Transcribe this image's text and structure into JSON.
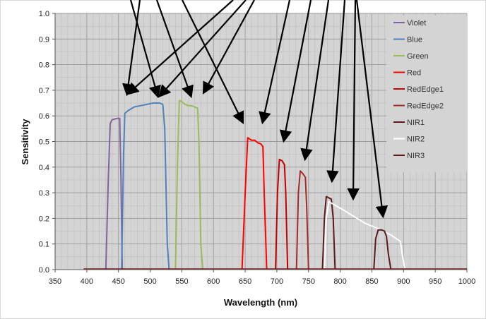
{
  "chart_data": {
    "type": "line",
    "title": "",
    "xlabel": "Wavelength (nm)",
    "ylabel": "Sensitivity",
    "xlim": [
      350,
      1000
    ],
    "ylim": [
      0,
      1.0
    ],
    "x_ticks": [
      "350",
      "400",
      "450",
      "500",
      "550",
      "600",
      "650",
      "700",
      "750",
      "800",
      "850",
      "900",
      "950",
      "1000"
    ],
    "y_ticks": [
      "0.0",
      "0.1",
      "0.2",
      "0.3",
      "0.4",
      "0.5",
      "0.6",
      "0.7",
      "0.8",
      "0.9",
      "1.0"
    ],
    "grid": true,
    "legend_position": "top-right",
    "series": [
      {
        "name": "Violet",
        "color": "#8064a2",
        "points": [
          [
            430,
            0
          ],
          [
            434,
            0.35
          ],
          [
            437,
            0.57
          ],
          [
            440,
            0.585
          ],
          [
            448,
            0.59
          ],
          [
            452,
            0.59
          ],
          [
            454,
            0.35
          ],
          [
            456,
            0
          ]
        ]
      },
      {
        "name": "Blue",
        "color": "#4f81bd",
        "points": [
          [
            455,
            0
          ],
          [
            458,
            0.45
          ],
          [
            460,
            0.61
          ],
          [
            465,
            0.62
          ],
          [
            475,
            0.635
          ],
          [
            485,
            0.64
          ],
          [
            495,
            0.645
          ],
          [
            505,
            0.65
          ],
          [
            515,
            0.65
          ],
          [
            520,
            0.645
          ],
          [
            523,
            0.55
          ],
          [
            527,
            0.1
          ],
          [
            530,
            0
          ]
        ]
      },
      {
        "name": "Green",
        "color": "#9bbb59",
        "points": [
          [
            540,
            0
          ],
          [
            543,
            0.4
          ],
          [
            546,
            0.66
          ],
          [
            550,
            0.655
          ],
          [
            555,
            0.645
          ],
          [
            560,
            0.64
          ],
          [
            565,
            0.64
          ],
          [
            570,
            0.635
          ],
          [
            575,
            0.63
          ],
          [
            577,
            0.5
          ],
          [
            580,
            0.1
          ],
          [
            583,
            0
          ]
        ]
      },
      {
        "name": "Red",
        "color": "#ff0000",
        "points": [
          [
            645,
            0
          ],
          [
            650,
            0.3
          ],
          [
            654,
            0.515
          ],
          [
            660,
            0.505
          ],
          [
            665,
            0.505
          ],
          [
            670,
            0.495
          ],
          [
            675,
            0.49
          ],
          [
            678,
            0.48
          ],
          [
            680,
            0.3
          ],
          [
            684,
            0
          ]
        ]
      },
      {
        "name": "RedEdge1",
        "color": "#c00000",
        "points": [
          [
            698,
            0
          ],
          [
            701,
            0.3
          ],
          [
            704,
            0.43
          ],
          [
            708,
            0.425
          ],
          [
            712,
            0.41
          ],
          [
            714,
            0.3
          ],
          [
            717,
            0
          ]
        ]
      },
      {
        "name": "RedEdge2",
        "color": "#a52a2a",
        "points": [
          [
            731,
            0
          ],
          [
            734,
            0.3
          ],
          [
            737,
            0.385
          ],
          [
            741,
            0.375
          ],
          [
            745,
            0.36
          ],
          [
            747,
            0.25
          ],
          [
            750,
            0
          ]
        ]
      },
      {
        "name": "NIR1",
        "color": "#5a1a1a",
        "points": [
          [
            772,
            0
          ],
          [
            775,
            0.2
          ],
          [
            778,
            0.285
          ],
          [
            782,
            0.28
          ],
          [
            786,
            0.275
          ],
          [
            789,
            0.2
          ],
          [
            792,
            0
          ]
        ]
      },
      {
        "name": "NIR2",
        "color": "#ffffff",
        "points": [
          [
            775,
            0
          ],
          [
            778,
            0.2
          ],
          [
            782,
            0.265
          ],
          [
            800,
            0.24
          ],
          [
            820,
            0.21
          ],
          [
            840,
            0.18
          ],
          [
            860,
            0.16
          ],
          [
            880,
            0.135
          ],
          [
            895,
            0.11
          ],
          [
            898,
            0.06
          ],
          [
            902,
            0
          ]
        ]
      },
      {
        "name": "NIR3",
        "color": "#5a1a1a",
        "points": [
          [
            853,
            0
          ],
          [
            856,
            0.12
          ],
          [
            860,
            0.155
          ],
          [
            865,
            0.155
          ],
          [
            870,
            0.15
          ],
          [
            873,
            0.13
          ],
          [
            876,
            0.06
          ],
          [
            880,
            0
          ]
        ]
      }
    ]
  }
}
